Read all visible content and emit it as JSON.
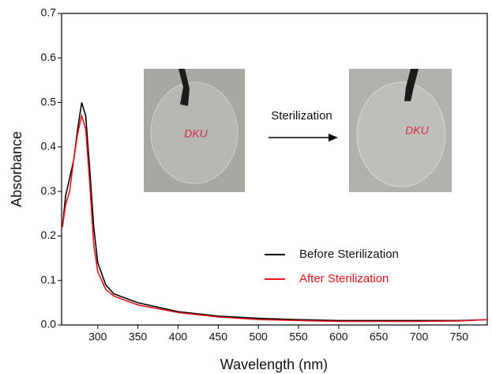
{
  "chart_data": {
    "type": "line",
    "x_label": "Wavelength (nm)",
    "y_label": "Absorbance",
    "x": [
      256,
      260,
      265,
      270,
      275,
      280,
      285,
      290,
      295,
      300,
      310,
      320,
      350,
      400,
      450,
      500,
      550,
      600,
      650,
      700,
      750,
      785
    ],
    "series": [
      {
        "name": "Before Sterilization",
        "color": "#000000",
        "values": [
          0.22,
          0.29,
          0.33,
          0.37,
          0.44,
          0.5,
          0.47,
          0.35,
          0.22,
          0.14,
          0.09,
          0.07,
          0.05,
          0.03,
          0.02,
          0.015,
          0.012,
          0.01,
          0.01,
          0.01,
          0.01,
          0.012
        ]
      },
      {
        "name": "After Sterilization",
        "color": "#e8141c",
        "values": [
          0.22,
          0.27,
          0.3,
          0.37,
          0.43,
          0.47,
          0.44,
          0.32,
          0.18,
          0.12,
          0.08,
          0.065,
          0.045,
          0.028,
          0.018,
          0.012,
          0.01,
          0.008,
          0.008,
          0.008,
          0.009,
          0.012
        ]
      }
    ],
    "xlim": [
      255,
      785
    ],
    "ylim": [
      0,
      0.7
    ],
    "xticks": [
      300,
      350,
      400,
      450,
      500,
      550,
      600,
      650,
      700,
      750
    ],
    "yticks": [
      {
        "value": 0,
        "label": "0.0"
      },
      {
        "value": 0.1,
        "label": "0.1"
      },
      {
        "value": 0.2,
        "label": "0.2"
      },
      {
        "value": 0.3,
        "label": "0.3"
      },
      {
        "value": 0.4,
        "label": "0.4"
      },
      {
        "value": 0.5,
        "label": "0.5"
      },
      {
        "value": 0.6,
        "label": "0.6"
      },
      {
        "value": 0.7,
        "label": "0.7"
      }
    ],
    "legend": "center right",
    "annotations": [
      "Sterilization"
    ],
    "photo_labels": [
      "DKU",
      "DKU"
    ]
  }
}
